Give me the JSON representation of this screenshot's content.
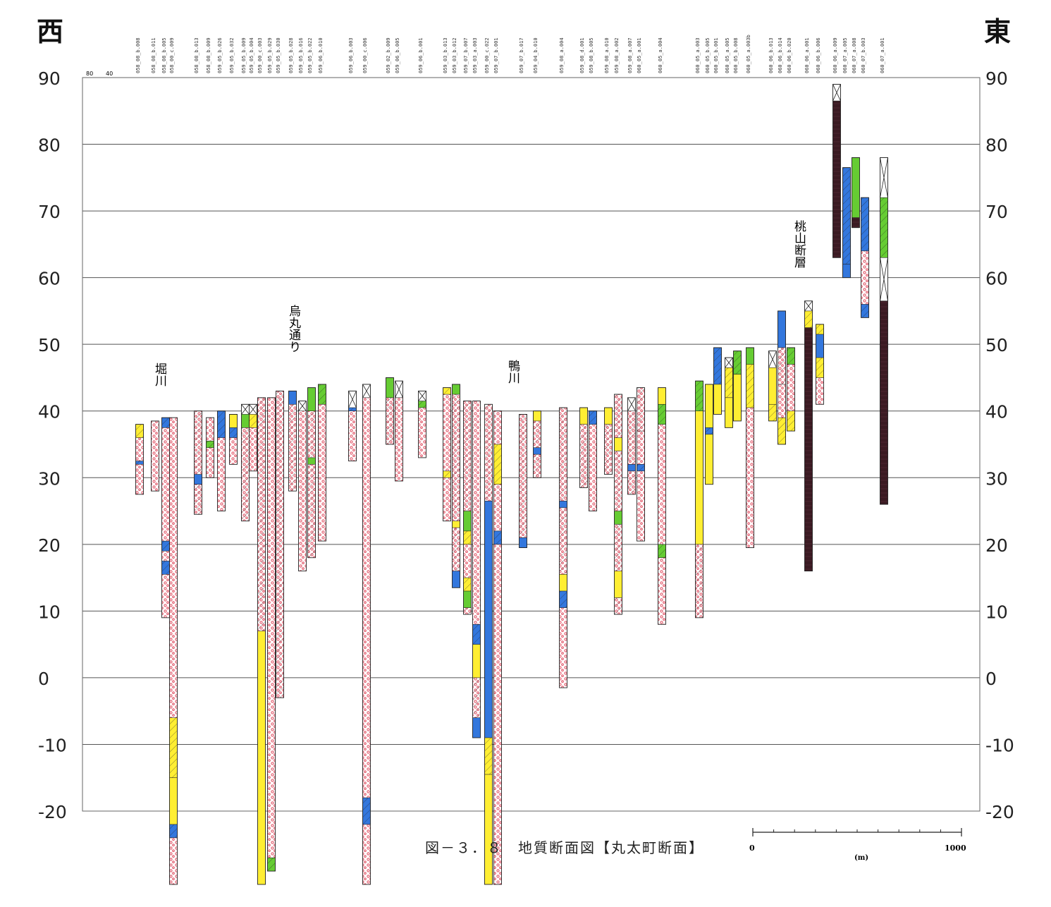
{
  "direction_labels": {
    "west": "西",
    "east": "東"
  },
  "caption": "図－３．８　地質断面図【丸太町断面】",
  "elevation_axis": {
    "ticks": [
      "90",
      "80",
      "70",
      "60",
      "50",
      "40",
      "30",
      "20",
      "10",
      "0",
      "-10",
      "-20"
    ],
    "values": [
      90,
      80,
      70,
      60,
      50,
      40,
      30,
      20,
      10,
      0,
      -10,
      -20
    ],
    "range": [
      -21,
      90
    ]
  },
  "top_ruler_labels": [
    "80",
    "40"
  ],
  "place_labels": [
    {
      "text": "堀川"
    },
    {
      "text": "烏丸通り"
    },
    {
      "text": "鴨川"
    },
    {
      "text": "桃山断層"
    }
  ],
  "scale_bar": {
    "start": "0",
    "end": "1000",
    "unit": "(m)"
  },
  "colors": {
    "gravel": "#ee5566",
    "sand": "#ffee33",
    "clay": "#3377dd",
    "silt": "#66cc33",
    "fill": "#ffffff",
    "bedrock": "#3a1a22",
    "line": "#222222",
    "grid": "#555555"
  },
  "boreholes": [
    {
      "id": "058_08_b.008",
      "top": 38,
      "bottom": 27.5,
      "layers": [
        [
          38,
          36,
          "sand"
        ],
        [
          36,
          32.5,
          "gravel"
        ],
        [
          32.5,
          32,
          "clay"
        ],
        [
          32,
          27.5,
          "gravel"
        ]
      ]
    },
    {
      "id": "058_08_b.011",
      "top": 38.5,
      "bottom": 28,
      "layers": [
        [
          38.5,
          28,
          "gravel"
        ]
      ]
    },
    {
      "id": "058_08_b.005",
      "top": 39,
      "bottom": 9,
      "layers": [
        [
          39,
          37.5,
          "clay"
        ],
        [
          37.5,
          20.5,
          "gravel"
        ],
        [
          20.5,
          19,
          "clay"
        ],
        [
          19,
          17.5,
          "gravel"
        ],
        [
          17.5,
          15.5,
          "clay"
        ],
        [
          15.5,
          9,
          "gravel"
        ]
      ]
    },
    {
      "id": "058_00_c.009",
      "top": 39,
      "bottom": -31,
      "layers": [
        [
          39,
          -6,
          "gravel"
        ],
        [
          -6,
          -15,
          "sand"
        ],
        [
          -15,
          -22,
          "sand"
        ],
        [
          -22,
          -24,
          "clay"
        ],
        [
          -24,
          -31,
          "gravel"
        ]
      ]
    },
    {
      "id": "058_08_b.013",
      "top": 40,
      "bottom": 24.5,
      "layers": [
        [
          40,
          30.5,
          "gravel"
        ],
        [
          30.5,
          29,
          "clay"
        ],
        [
          29,
          24.5,
          "gravel"
        ]
      ]
    },
    {
      "id": "058_08_b.009",
      "top": 39,
      "bottom": 30,
      "layers": [
        [
          39,
          35.5,
          "gravel"
        ],
        [
          35.5,
          34.5,
          "silt"
        ],
        [
          34.5,
          30,
          "gravel"
        ]
      ]
    },
    {
      "id": "059_05_b.026",
      "top": 40,
      "bottom": 25,
      "layers": [
        [
          40,
          36,
          "clay"
        ],
        [
          36,
          25,
          "gravel"
        ]
      ]
    },
    {
      "id": "059_05_b.032",
      "top": 39.5,
      "bottom": 32,
      "layers": [
        [
          39.5,
          37.5,
          "sand"
        ],
        [
          37.5,
          36,
          "clay"
        ],
        [
          36,
          32,
          "gravel"
        ]
      ]
    },
    {
      "id": "059_05_b.009",
      "top": 41,
      "bottom": 23.5,
      "layers": [
        [
          41,
          39.5,
          "fill"
        ],
        [
          39.5,
          37.5,
          "silt"
        ],
        [
          37.5,
          23.5,
          "gravel"
        ]
      ]
    },
    {
      "id": "059_05_b.004",
      "top": 41,
      "bottom": 31,
      "layers": [
        [
          41,
          39.5,
          "fill"
        ],
        [
          39.5,
          37.5,
          "sand"
        ],
        [
          37.5,
          31,
          "gravel"
        ]
      ]
    },
    {
      "id": "059_00_c.003",
      "top": 42,
      "bottom": -31,
      "layers": [
        [
          42,
          7,
          "gravel"
        ],
        [
          7,
          -31,
          "sand"
        ]
      ]
    },
    {
      "id": "059_05_b.029",
      "top": 42,
      "bottom": -29,
      "layers": [
        [
          42,
          -27,
          "gravel"
        ],
        [
          -27,
          -29,
          "silt"
        ]
      ]
    },
    {
      "id": "059_05_b.030",
      "top": 43,
      "bottom": -3,
      "layers": [
        [
          43,
          -3,
          "gravel"
        ]
      ]
    },
    {
      "id": "059_05_b.028",
      "top": 43,
      "bottom": 28,
      "layers": [
        [
          43,
          41,
          "clay"
        ],
        [
          41,
          28,
          "gravel"
        ]
      ]
    },
    {
      "id": "059_05_b.016",
      "top": 41.5,
      "bottom": 16,
      "layers": [
        [
          41.5,
          40,
          "fill"
        ],
        [
          40,
          16,
          "gravel"
        ]
      ]
    },
    {
      "id": "059_05_b.022",
      "top": 43.5,
      "bottom": 18,
      "layers": [
        [
          43.5,
          40,
          "silt"
        ],
        [
          40,
          33,
          "gravel"
        ],
        [
          33,
          32,
          "silt"
        ],
        [
          32,
          18,
          "gravel"
        ]
      ]
    },
    {
      "id": "059_06_b.010",
      "top": 44,
      "bottom": 20.5,
      "layers": [
        [
          44,
          41,
          "silt"
        ],
        [
          41,
          20.5,
          "gravel"
        ]
      ]
    },
    {
      "id": "059_06_b.003",
      "top": 43,
      "bottom": 32.5,
      "layers": [
        [
          43,
          40.5,
          "fill"
        ],
        [
          40.5,
          40,
          "clay"
        ],
        [
          40,
          32.5,
          "gravel"
        ]
      ]
    },
    {
      "id": "059_00_c.006",
      "top": 44,
      "bottom": -31,
      "layers": [
        [
          44,
          42,
          "fill"
        ],
        [
          42,
          -18,
          "gravel"
        ],
        [
          -18,
          -22,
          "clay"
        ],
        [
          -22,
          -31,
          "gravel"
        ]
      ]
    },
    {
      "id": "059_02_b.009",
      "top": 45,
      "bottom": 35,
      "layers": [
        [
          45,
          42,
          "silt"
        ],
        [
          42,
          35,
          "gravel"
        ]
      ]
    },
    {
      "id": "059_06_b.005",
      "top": 44.5,
      "bottom": 29.5,
      "layers": [
        [
          44.5,
          42,
          "fill"
        ],
        [
          42,
          29.5,
          "gravel"
        ]
      ]
    },
    {
      "id": "059_06_b.001",
      "top": 43,
      "bottom": 33,
      "layers": [
        [
          43,
          41.5,
          "fill"
        ],
        [
          41.5,
          40.5,
          "silt"
        ],
        [
          40.5,
          33,
          "gravel"
        ]
      ]
    },
    {
      "id": "059_03_b.013",
      "top": 43.5,
      "bottom": 23.5,
      "layers": [
        [
          43.5,
          42.5,
          "sand"
        ],
        [
          42.5,
          31,
          "gravel"
        ],
        [
          31,
          30,
          "sand"
        ],
        [
          30,
          23.5,
          "gravel"
        ]
      ]
    },
    {
      "id": "059_03_b.012",
      "top": 44,
      "bottom": 13.5,
      "layers": [
        [
          44,
          42.5,
          "silt"
        ],
        [
          42.5,
          23.5,
          "gravel"
        ],
        [
          23.5,
          22.5,
          "sand"
        ],
        [
          22.5,
          16,
          "gravel"
        ],
        [
          16,
          13.5,
          "clay"
        ]
      ]
    },
    {
      "id": "059_07_b.007",
      "top": 41.5,
      "bottom": 9.5,
      "layers": [
        [
          41.5,
          25,
          "gravel"
        ],
        [
          25,
          22,
          "silt"
        ],
        [
          22,
          20,
          "sand"
        ],
        [
          20,
          15,
          "gravel"
        ],
        [
          15,
          13,
          "sand"
        ],
        [
          13,
          10.5,
          "silt"
        ],
        [
          10.5,
          9.5,
          "gravel"
        ]
      ]
    },
    {
      "id": "059_03_a.003",
      "top": 41.5,
      "bottom": -9,
      "layers": [
        [
          41.5,
          8,
          "gravel"
        ],
        [
          8,
          5,
          "clay"
        ],
        [
          5,
          0,
          "sand"
        ],
        [
          0,
          -6,
          "gravel"
        ],
        [
          -6,
          -9,
          "clay"
        ]
      ]
    },
    {
      "id": "059_00_c.022",
      "top": 41,
      "bottom": -31,
      "layers": [
        [
          41,
          26.5,
          "gravel"
        ],
        [
          26.5,
          -9,
          "clay"
        ],
        [
          -9,
          -14.5,
          "sand"
        ],
        [
          -14.5,
          -31,
          "sand"
        ]
      ]
    },
    {
      "id": "059_07_b.001",
      "top": 40,
      "bottom": -31,
      "layers": [
        [
          40,
          35,
          "gravel"
        ],
        [
          35,
          29,
          "sand"
        ],
        [
          29,
          22,
          "gravel"
        ],
        [
          22,
          20,
          "clay"
        ],
        [
          20,
          -31,
          "gravel"
        ]
      ]
    },
    {
      "id": "059_07_b.017",
      "top": 39.5,
      "bottom": 19.5,
      "layers": [
        [
          39.5,
          21,
          "gravel"
        ],
        [
          21,
          19.5,
          "clay"
        ]
      ]
    },
    {
      "id": "059_04_b.010",
      "top": 40,
      "bottom": 30,
      "layers": [
        [
          40,
          38.5,
          "sand"
        ],
        [
          38.5,
          34.5,
          "gravel"
        ],
        [
          34.5,
          33.5,
          "clay"
        ],
        [
          33.5,
          30,
          "gravel"
        ]
      ]
    },
    {
      "id": "059_08_a.004",
      "top": 40.5,
      "bottom": -1.5,
      "layers": [
        [
          40.5,
          26.5,
          "gravel"
        ],
        [
          26.5,
          25.5,
          "clay"
        ],
        [
          25.5,
          15.5,
          "gravel"
        ],
        [
          15.5,
          13,
          "sand"
        ],
        [
          13,
          10.5,
          "clay"
        ],
        [
          10.5,
          -1.5,
          "gravel"
        ]
      ]
    },
    {
      "id": "059_08_d.001",
      "top": 40.5,
      "bottom": 28.5,
      "layers": [
        [
          40.5,
          38,
          "sand"
        ],
        [
          38,
          28.5,
          "gravel"
        ]
      ]
    },
    {
      "id": "059_08_b.005",
      "top": 40,
      "bottom": 25,
      "layers": [
        [
          40,
          38,
          "clay"
        ],
        [
          38,
          25,
          "gravel"
        ]
      ]
    },
    {
      "id": "059_08_a.010",
      "top": 40.5,
      "bottom": 30.5,
      "layers": [
        [
          40.5,
          38,
          "sand"
        ],
        [
          38,
          30.5,
          "gravel"
        ]
      ]
    },
    {
      "id": "059_08_a.002",
      "top": 42.5,
      "bottom": 9.5,
      "layers": [
        [
          42.5,
          36,
          "gravel"
        ],
        [
          36,
          34,
          "sand"
        ],
        [
          34,
          25,
          "gravel"
        ],
        [
          25,
          23,
          "silt"
        ],
        [
          23,
          16,
          "gravel"
        ],
        [
          16,
          12,
          "sand"
        ],
        [
          12,
          9.5,
          "gravel"
        ]
      ]
    },
    {
      "id": "059_08_a.007",
      "top": 42,
      "bottom": 27.5,
      "layers": [
        [
          42,
          40,
          "fill"
        ],
        [
          40,
          32,
          "gravel"
        ],
        [
          32,
          31,
          "clay"
        ],
        [
          31,
          27.5,
          "gravel"
        ]
      ]
    },
    {
      "id": "060_05_a.001",
      "top": 43.5,
      "bottom": 20.5,
      "layers": [
        [
          43.5,
          37,
          "gravel"
        ],
        [
          37,
          32,
          "gravel"
        ],
        [
          32,
          31,
          "clay"
        ],
        [
          31,
          20.5,
          "gravel"
        ]
      ]
    },
    {
      "id": "060_05_a.004",
      "top": 43.5,
      "bottom": 8,
      "layers": [
        [
          43.5,
          41,
          "sand"
        ],
        [
          41,
          38,
          "silt"
        ],
        [
          38,
          20,
          "gravel"
        ],
        [
          20,
          18,
          "silt"
        ],
        [
          18,
          8,
          "gravel"
        ]
      ]
    },
    {
      "id": "060_05_a.003",
      "top": 44.5,
      "bottom": 9,
      "layers": [
        [
          44.5,
          40,
          "silt"
        ],
        [
          40,
          20,
          "sand"
        ],
        [
          20,
          9,
          "gravel"
        ]
      ]
    },
    {
      "id": "060_05_b.005",
      "top": 44,
      "bottom": 29,
      "layers": [
        [
          44,
          37.5,
          "sand"
        ],
        [
          37.5,
          36.5,
          "clay"
        ],
        [
          36.5,
          29,
          "sand"
        ]
      ]
    },
    {
      "id": "060_05_b.001",
      "top": 49.5,
      "bottom": 39.5,
      "layers": [
        [
          49.5,
          44,
          "clay"
        ],
        [
          44,
          39.5,
          "sand"
        ]
      ]
    },
    {
      "id": "060_05_a.005",
      "top": 48,
      "bottom": 37.5,
      "layers": [
        [
          48,
          46.5,
          "fill"
        ],
        [
          46.5,
          42,
          "sand"
        ],
        [
          42,
          37.5,
          "sand"
        ]
      ]
    },
    {
      "id": "060_05_b.008",
      "top": 49,
      "bottom": 38.5,
      "layers": [
        [
          49,
          45.5,
          "silt"
        ],
        [
          45.5,
          38.5,
          "sand"
        ]
      ]
    },
    {
      "id": "060_05_a.003b",
      "top": 49.5,
      "bottom": 19.5,
      "layers": [
        [
          49.5,
          47,
          "silt"
        ],
        [
          47,
          40.5,
          "sand"
        ],
        [
          40.5,
          19.5,
          "gravel"
        ]
      ]
    },
    {
      "id": "060_06_b.013",
      "top": 49,
      "bottom": 38.5,
      "layers": [
        [
          49,
          46.5,
          "fill"
        ],
        [
          46.5,
          41,
          "sand"
        ],
        [
          41,
          38.5,
          "sand"
        ]
      ]
    },
    {
      "id": "060_06_b.014",
      "top": 55,
      "bottom": 35,
      "layers": [
        [
          55,
          49.5,
          "clay"
        ],
        [
          49.5,
          44,
          "gravel"
        ],
        [
          44,
          39,
          "gravel"
        ],
        [
          39,
          35,
          "sand"
        ]
      ]
    },
    {
      "id": "060_06_b.020",
      "top": 49.5,
      "bottom": 37,
      "layers": [
        [
          49.5,
          47,
          "silt"
        ],
        [
          47,
          40,
          "gravel"
        ],
        [
          40,
          37,
          "sand"
        ]
      ]
    },
    {
      "id": "060_06_a.001",
      "top": 56.5,
      "bottom": 16,
      "layers": [
        [
          56.5,
          55,
          "fill"
        ],
        [
          55,
          52.5,
          "sand"
        ],
        [
          52.5,
          16,
          "bedrock"
        ]
      ]
    },
    {
      "id": "060_06_b.006",
      "top": 53,
      "bottom": 41,
      "layers": [
        [
          53,
          51.5,
          "sand"
        ],
        [
          51.5,
          48,
          "clay"
        ],
        [
          48,
          45,
          "sand"
        ],
        [
          45,
          41,
          "gravel"
        ]
      ]
    },
    {
      "id": "060_06_a.009",
      "top": 89,
      "bottom": 63,
      "layers": [
        [
          89,
          86.5,
          "fill"
        ],
        [
          86.5,
          63,
          "bedrock"
        ]
      ]
    },
    {
      "id": "060_07_a.005",
      "top": 76.5,
      "bottom": 60,
      "layers": [
        [
          76.5,
          62,
          "clay"
        ],
        [
          62,
          60,
          "clay"
        ]
      ]
    },
    {
      "id": "060_07_a.008",
      "top": 78,
      "bottom": 67.5,
      "layers": [
        [
          78,
          69,
          "silt"
        ],
        [
          69,
          67.5,
          "bedrock"
        ]
      ]
    },
    {
      "id": "060_07_b.003",
      "top": 72,
      "bottom": 54,
      "layers": [
        [
          72,
          64,
          "clay"
        ],
        [
          64,
          56,
          "gravel"
        ],
        [
          56,
          54,
          "clay"
        ]
      ]
    },
    {
      "id": "060_07_a.001",
      "top": 78,
      "bottom": 26,
      "layers": [
        [
          78,
          72,
          "fill"
        ],
        [
          72,
          63,
          "silt"
        ],
        [
          63,
          56.5,
          "fill"
        ],
        [
          56.5,
          26,
          "bedrock"
        ]
      ]
    }
  ]
}
